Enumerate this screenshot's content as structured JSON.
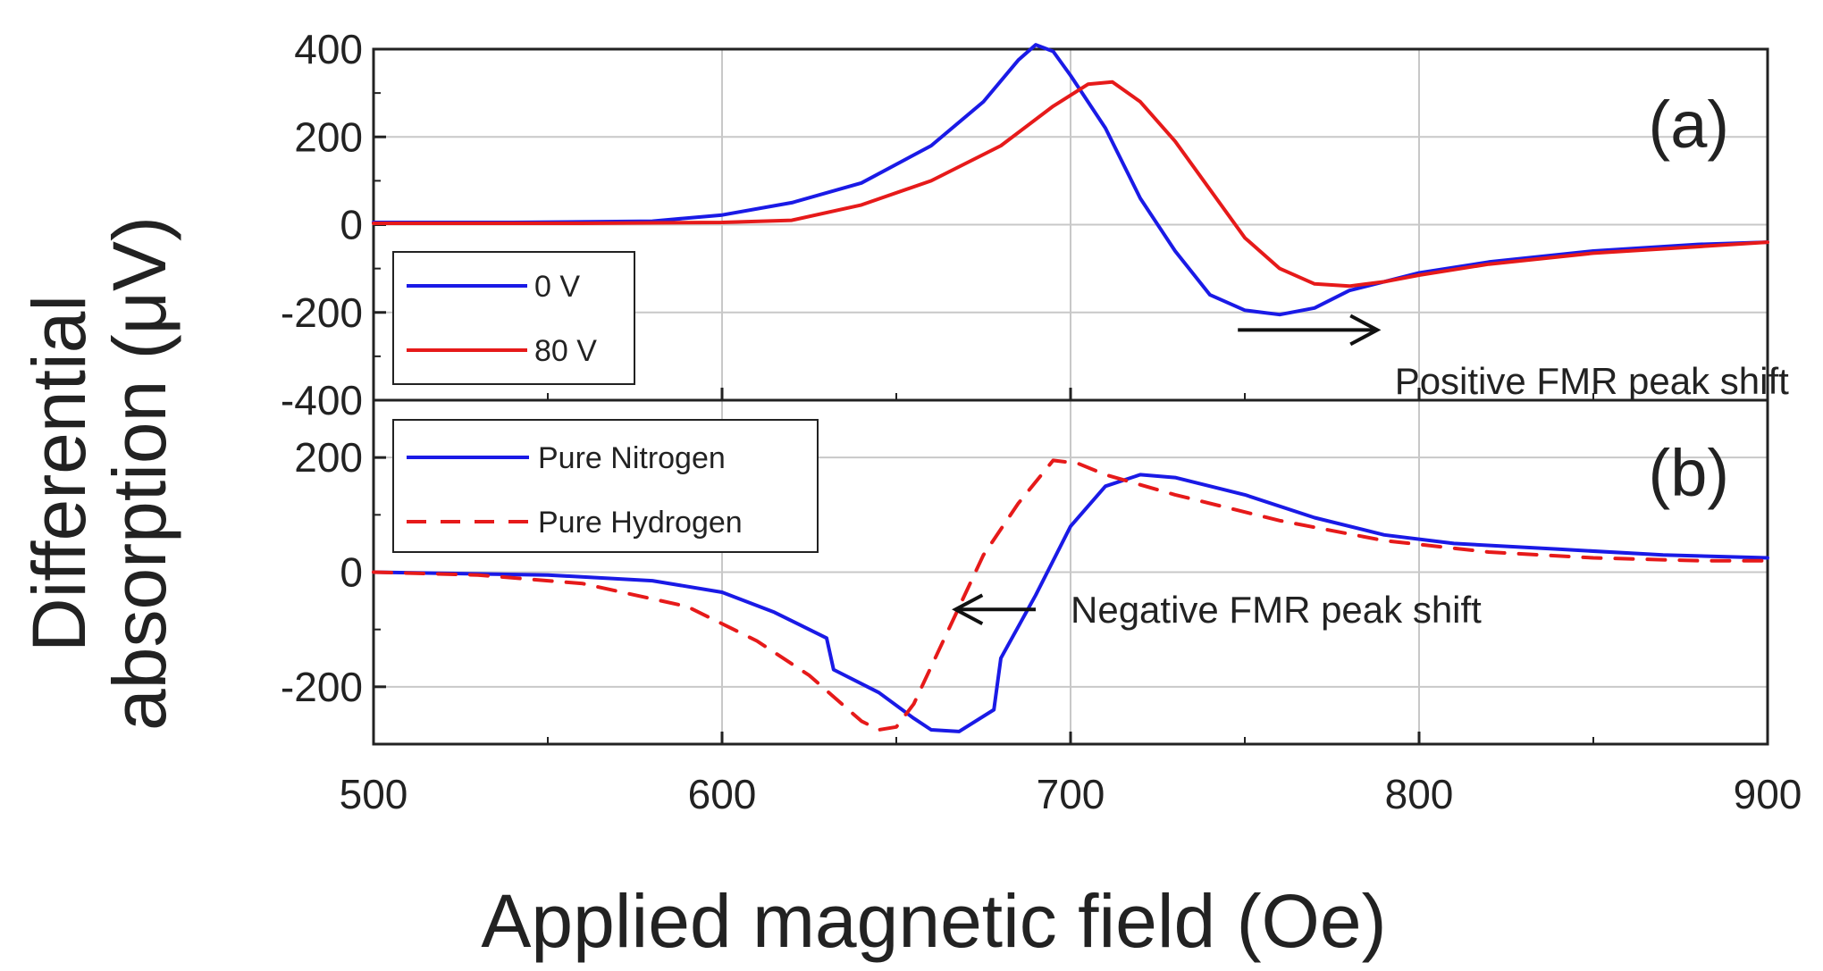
{
  "chart_data": {
    "type": "line",
    "shared_x": {
      "label": "Applied magnetic field (Oe)",
      "lim": [
        500,
        900
      ],
      "ticks": [
        500,
        600,
        700,
        800,
        900
      ],
      "grid": true
    },
    "ylabel_lines": [
      "Differential",
      "absorption (μV)"
    ],
    "panels": [
      {
        "id": "a",
        "tag": "(a)",
        "ylim": [
          -400,
          400
        ],
        "yticks": [
          -400,
          -200,
          0,
          200,
          400
        ],
        "legend": {
          "position": "bottom-left"
        },
        "series": [
          {
            "name": "0 V",
            "color": "#1a1ae6",
            "style": "solid",
            "points": [
              [
                500,
                5
              ],
              [
                540,
                5
              ],
              [
                580,
                8
              ],
              [
                600,
                22
              ],
              [
                620,
                50
              ],
              [
                640,
                95
              ],
              [
                660,
                180
              ],
              [
                675,
                280
              ],
              [
                685,
                375
              ],
              [
                690,
                410
              ],
              [
                695,
                395
              ],
              [
                700,
                340
              ],
              [
                710,
                220
              ],
              [
                720,
                60
              ],
              [
                730,
                -60
              ],
              [
                740,
                -160
              ],
              [
                750,
                -195
              ],
              [
                760,
                -205
              ],
              [
                770,
                -190
              ],
              [
                780,
                -150
              ],
              [
                800,
                -110
              ],
              [
                820,
                -85
              ],
              [
                850,
                -60
              ],
              [
                880,
                -45
              ],
              [
                900,
                -40
              ]
            ]
          },
          {
            "name": "80 V",
            "color": "#e61a1a",
            "style": "solid",
            "points": [
              [
                500,
                3
              ],
              [
                560,
                3
              ],
              [
                600,
                5
              ],
              [
                620,
                10
              ],
              [
                640,
                45
              ],
              [
                660,
                100
              ],
              [
                680,
                180
              ],
              [
                695,
                270
              ],
              [
                705,
                320
              ],
              [
                712,
                325
              ],
              [
                720,
                280
              ],
              [
                730,
                190
              ],
              [
                740,
                80
              ],
              [
                750,
                -30
              ],
              [
                760,
                -100
              ],
              [
                770,
                -135
              ],
              [
                780,
                -140
              ],
              [
                790,
                -130
              ],
              [
                800,
                -115
              ],
              [
                820,
                -90
              ],
              [
                850,
                -65
              ],
              [
                880,
                -50
              ],
              [
                900,
                -40
              ]
            ]
          }
        ],
        "annotation": {
          "text": "Positive FMR peak shift",
          "arrow_from": [
            748,
            -240
          ],
          "arrow_to": [
            788,
            -240
          ],
          "text_at": [
            793,
            -355
          ]
        }
      },
      {
        "id": "b",
        "tag": "(b)",
        "ylim": [
          -300,
          300
        ],
        "yticks": [
          -200,
          0,
          200
        ],
        "legend": {
          "position": "top-left"
        },
        "series": [
          {
            "name": "Pure Nitrogen",
            "color": "#1a1ae6",
            "style": "solid",
            "points": [
              [
                500,
                0
              ],
              [
                550,
                -5
              ],
              [
                580,
                -15
              ],
              [
                600,
                -35
              ],
              [
                615,
                -70
              ],
              [
                630,
                -115
              ],
              [
                632,
                -170
              ],
              [
                645,
                -210
              ],
              [
                655,
                -255
              ],
              [
                660,
                -275
              ],
              [
                668,
                -278
              ],
              [
                678,
                -240
              ],
              [
                680,
                -150
              ],
              [
                690,
                -40
              ],
              [
                700,
                80
              ],
              [
                710,
                150
              ],
              [
                720,
                170
              ],
              [
                730,
                165
              ],
              [
                750,
                135
              ],
              [
                770,
                95
              ],
              [
                790,
                65
              ],
              [
                810,
                50
              ],
              [
                840,
                40
              ],
              [
                870,
                30
              ],
              [
                900,
                25
              ]
            ]
          },
          {
            "name": "Pure Hydrogen",
            "color": "#e61a1a",
            "style": "dashed",
            "points": [
              [
                500,
                0
              ],
              [
                530,
                -5
              ],
              [
                560,
                -20
              ],
              [
                590,
                -60
              ],
              [
                610,
                -120
              ],
              [
                625,
                -180
              ],
              [
                640,
                -260
              ],
              [
                645,
                -275
              ],
              [
                650,
                -270
              ],
              [
                655,
                -230
              ],
              [
                665,
                -100
              ],
              [
                675,
                30
              ],
              [
                685,
                120
              ],
              [
                695,
                195
              ],
              [
                702,
                190
              ],
              [
                710,
                170
              ],
              [
                730,
                135
              ],
              [
                760,
                90
              ],
              [
                790,
                55
              ],
              [
                820,
                35
              ],
              [
                850,
                25
              ],
              [
                880,
                20
              ],
              [
                900,
                20
              ]
            ]
          }
        ],
        "annotation": {
          "text": "Negative FMR peak shift",
          "arrow_from": [
            690,
            -65
          ],
          "arrow_to": [
            667,
            -65
          ],
          "text_at": [
            700,
            -65
          ]
        }
      }
    ]
  }
}
